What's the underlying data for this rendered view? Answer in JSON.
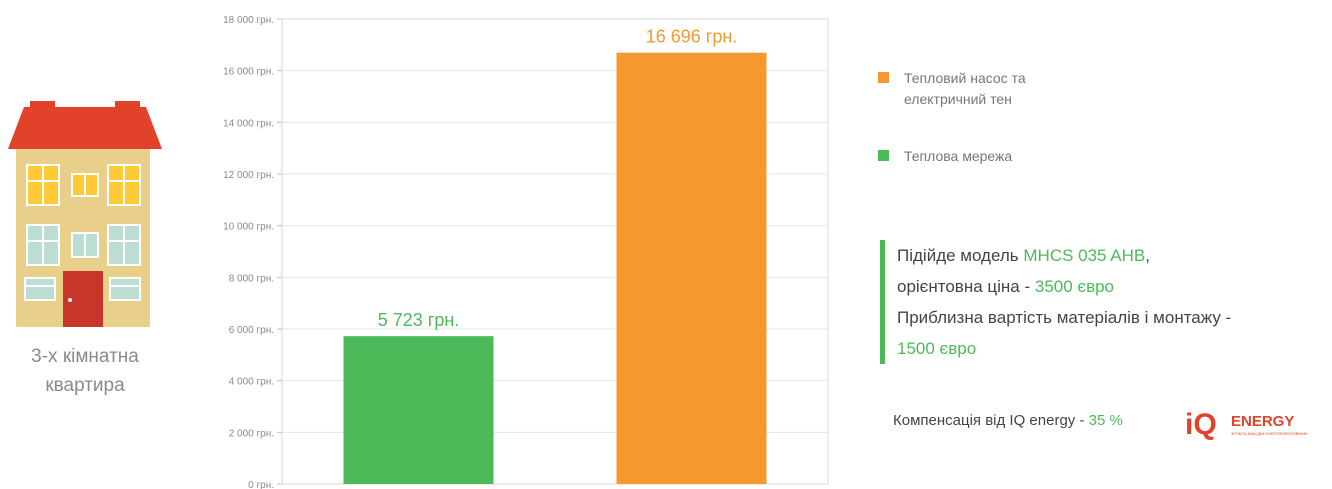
{
  "house": {
    "caption_line1": "3-х кімнатна",
    "caption_line2": "квартира"
  },
  "chart_data": {
    "type": "bar",
    "categories": [
      "",
      ""
    ],
    "values": [
      5723,
      16696
    ],
    "value_labels": [
      "5 723 грн.",
      "16 696 грн."
    ],
    "colors": [
      "#4dba5a",
      "#f4992f"
    ],
    "ylim": [
      0,
      18000
    ],
    "yticks": [
      {
        "value": 0,
        "label": "0 грн."
      },
      {
        "value": 2000,
        "label": "2 000 грн."
      },
      {
        "value": 4000,
        "label": "4 000 грн."
      },
      {
        "value": 6000,
        "label": "6 000 грн."
      },
      {
        "value": 8000,
        "label": "8 000 грн."
      },
      {
        "value": 10000,
        "label": "10 000 грн."
      },
      {
        "value": 12000,
        "label": "12 000 грн."
      },
      {
        "value": 14000,
        "label": "14 000 грн."
      },
      {
        "value": 16000,
        "label": "16 000 грн."
      },
      {
        "value": 18000,
        "label": "18 000 грн."
      }
    ],
    "grid": true,
    "legend_position": "right"
  },
  "legend": {
    "items": [
      {
        "line1": "Тепловий насос та",
        "line2": "електричний тен",
        "color": "#f4992f"
      },
      {
        "line1": "Теплова мережа",
        "line2": "",
        "color": "#4dba5a"
      }
    ]
  },
  "info": {
    "line1_prefix": "Підійде модель ",
    "model": "MHCS 035 AHB",
    "line1_suffix": ",",
    "line2_prefix": "орієнтовна ціна - ",
    "price": "3500 євро",
    "line3": "Приблизна вартість матеріалів і монтажу -",
    "install_cost": "1500 євро"
  },
  "compensation": {
    "label": "Компенсація від IQ energy - ",
    "value": "35 %"
  },
  "logo": {
    "letters": "iQ",
    "text": "ENERGY",
    "tagline": "ЗРОБІТЬ ВАШ ДІМ ЕНЕРГОЕФЕКТИВНИМ"
  }
}
